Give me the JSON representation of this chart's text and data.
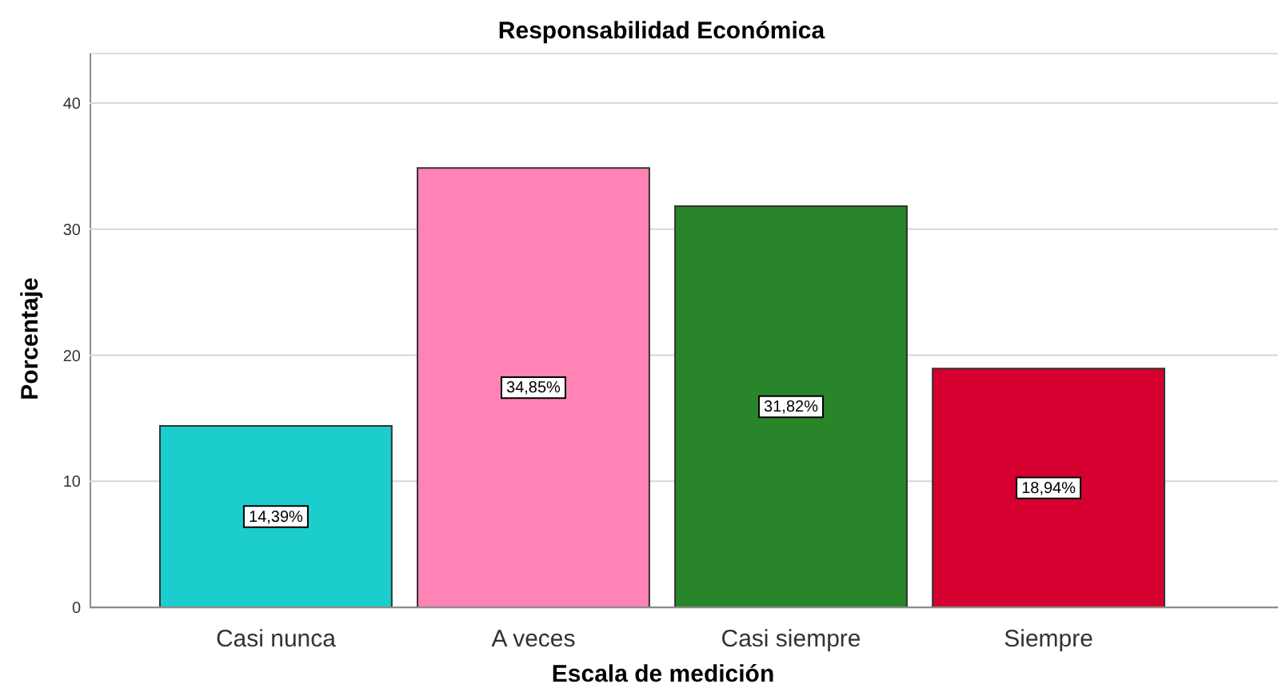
{
  "chart_data": {
    "type": "bar",
    "title": "Responsabilidad Económica",
    "xlabel": "Escala de medición",
    "ylabel": "Porcentaje",
    "categories": [
      "Casi nunca",
      "A veces",
      "Casi siempre",
      "Siempre"
    ],
    "values": [
      14.39,
      34.85,
      31.82,
      18.94
    ],
    "colors": [
      "#1ccdcd",
      "#ff83b4",
      "#29852a",
      "#d50030"
    ],
    "value_labels": [
      "14,39%",
      "34,85%",
      "31,82%",
      "18,94%"
    ],
    "ylim": [
      0,
      44
    ],
    "yticks": [
      0,
      10,
      20,
      30,
      40
    ],
    "grid": "y"
  }
}
